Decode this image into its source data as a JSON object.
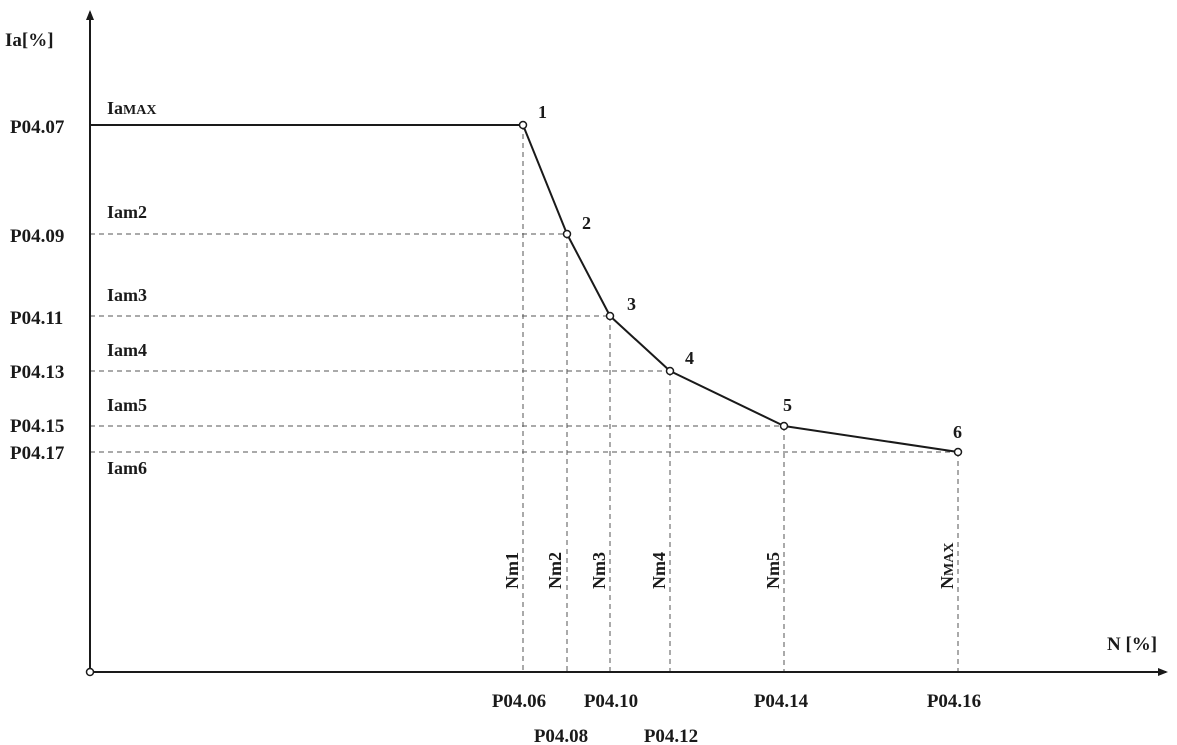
{
  "diagram": {
    "y_axis_label": "Ia[%]",
    "x_axis_label": "N [%]",
    "current_limit_max": {
      "main": "Ia",
      "sub": "MAX"
    },
    "speed_max": {
      "main": "N",
      "sub": "MAX"
    },
    "points": [
      {
        "id": "1",
        "x_param": "P04.06",
        "y_param": "P04.07",
        "speed_label": "Nm1",
        "current_label": ""
      },
      {
        "id": "2",
        "x_param": "P04.08",
        "y_param": "P04.09",
        "speed_label": "Nm2",
        "current_label": "Iam2"
      },
      {
        "id": "3",
        "x_param": "P04.10",
        "y_param": "P04.11",
        "speed_label": "Nm3",
        "current_label": "Iam3"
      },
      {
        "id": "4",
        "x_param": "P04.12",
        "y_param": "P04.13",
        "speed_label": "Nm4",
        "current_label": "Iam4"
      },
      {
        "id": "5",
        "x_param": "P04.14",
        "y_param": "P04.15",
        "speed_label": "Nm5",
        "current_label": "Iam5"
      },
      {
        "id": "6",
        "x_param": "P04.16",
        "y_param": "P04.17",
        "speed_label": "",
        "current_label": "Iam6"
      }
    ]
  }
}
